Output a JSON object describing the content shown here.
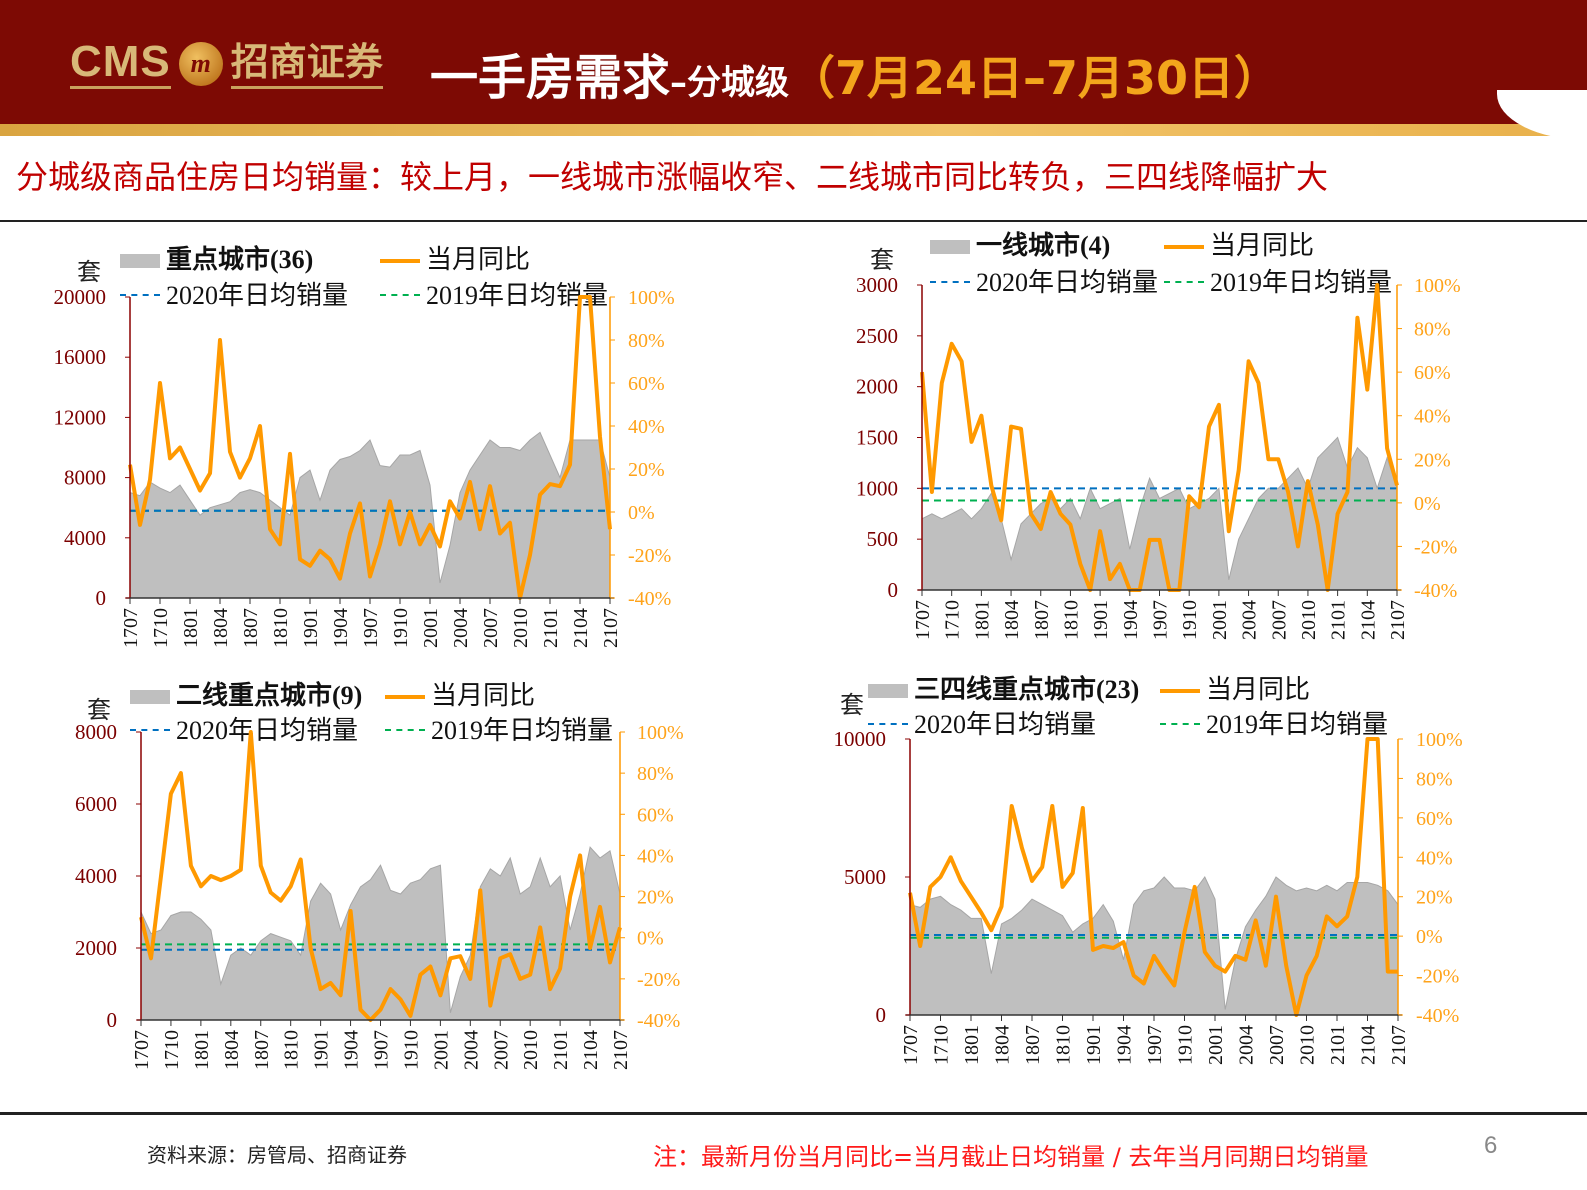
{
  "header": {
    "logo_text": "CMS",
    "logo_cn": "招商证券",
    "title_main": "一手房需求",
    "title_sub": "–分城级",
    "title_date": "（7月24日–7月30日）"
  },
  "subtitle": "分城级商品住房日均销量：较上月，一线城市涨幅收窄、二线城市同比转负，三四线降幅扩大",
  "footer": {
    "source": "资料来源：房管局、招商证券",
    "note": "注：最新月份当月同比=当月截止日均销量 / 去年当月同期日均销量",
    "page": "6"
  },
  "colors": {
    "area": "#bfbfbf",
    "yoy": "#ff9900",
    "avg2020": "#0070c0",
    "avg2019": "#00b050",
    "left_axis": "#8b0000",
    "right_axis": "#ff9900"
  },
  "chart_data": [
    {
      "type": "area+line",
      "unit": "套",
      "legend": {
        "area": "重点城市(36)",
        "yoy": "当月同比",
        "avg2020": "2020年日均销量",
        "avg2019": "2019年日均销量"
      },
      "categories": [
        "1707",
        "1708",
        "1709",
        "1710",
        "1711",
        "1712",
        "1801",
        "1802",
        "1803",
        "1804",
        "1805",
        "1806",
        "1807",
        "1808",
        "1809",
        "1810",
        "1811",
        "1812",
        "1901",
        "1902",
        "1903",
        "1904",
        "1905",
        "1906",
        "1907",
        "1908",
        "1909",
        "1910",
        "1911",
        "1912",
        "2001",
        "2002",
        "2003",
        "2004",
        "2005",
        "2006",
        "2007",
        "2008",
        "2009",
        "2010",
        "2011",
        "2012",
        "2101",
        "2102",
        "2103",
        "2104",
        "2105",
        "2106",
        "2107"
      ],
      "xticks": [
        "1707",
        "1710",
        "1801",
        "1804",
        "1807",
        "1810",
        "1901",
        "1904",
        "1907",
        "1910",
        "2001",
        "2004",
        "2007",
        "2010",
        "2101",
        "2104",
        "2107"
      ],
      "area_values": [
        7000,
        6800,
        7700,
        7300,
        7000,
        7500,
        6500,
        5500,
        6000,
        6200,
        6400,
        7000,
        7200,
        7000,
        6500,
        6000,
        5500,
        8000,
        8500,
        6500,
        8500,
        9200,
        9400,
        9800,
        10500,
        8800,
        8700,
        9500,
        9500,
        9800,
        7500,
        1000,
        3500,
        7000,
        8500,
        9500,
        10500,
        10000,
        10000,
        9800,
        10500,
        11000,
        9500,
        8000,
        10500,
        10500,
        10500,
        10500,
        8000
      ],
      "yoy_values": [
        22,
        -6,
        15,
        60,
        25,
        30,
        20,
        10,
        18,
        80,
        28,
        16,
        25,
        40,
        -8,
        -15,
        27,
        -22,
        -25,
        -18,
        -22,
        -31,
        -10,
        4,
        -30,
        -15,
        5,
        -15,
        0,
        -15,
        -6,
        -16,
        5,
        -3,
        14,
        -8,
        12,
        -10,
        -5,
        -40,
        -20,
        8,
        13,
        12,
        22,
        100,
        100,
        35,
        -8
      ],
      "avg2020": 5800,
      "avg2019": 5800,
      "yleft": {
        "min": 0,
        "max": 20000,
        "ticks": [
          "0",
          "4000",
          "8000",
          "12000",
          "16000",
          "20000"
        ]
      },
      "yright": {
        "min": -40,
        "max": 100,
        "ticks": [
          "-40%",
          "-20%",
          "0%",
          "20%",
          "40%",
          "60%",
          "80%",
          "100%"
        ]
      }
    },
    {
      "type": "area+line",
      "unit": "套",
      "legend": {
        "area": "一线城市(4)",
        "yoy": "当月同比",
        "avg2020": "2020年日均销量",
        "avg2019": "2019年日均销量"
      },
      "categories": [
        "1707",
        "1708",
        "1709",
        "1710",
        "1711",
        "1712",
        "1801",
        "1802",
        "1803",
        "1804",
        "1805",
        "1806",
        "1807",
        "1808",
        "1809",
        "1810",
        "1811",
        "1812",
        "1901",
        "1902",
        "1903",
        "1904",
        "1905",
        "1906",
        "1907",
        "1908",
        "1909",
        "1910",
        "1911",
        "1912",
        "2001",
        "2002",
        "2003",
        "2004",
        "2005",
        "2006",
        "2007",
        "2008",
        "2009",
        "2010",
        "2011",
        "2012",
        "2101",
        "2102",
        "2103",
        "2104",
        "2105",
        "2106",
        "2107"
      ],
      "xticks": [
        "1707",
        "1710",
        "1801",
        "1804",
        "1807",
        "1810",
        "1901",
        "1904",
        "1907",
        "1910",
        "2001",
        "2004",
        "2007",
        "2010",
        "2101",
        "2104",
        "2107"
      ],
      "area_values": [
        700,
        750,
        700,
        750,
        800,
        700,
        800,
        950,
        700,
        300,
        650,
        750,
        850,
        900,
        800,
        900,
        700,
        1000,
        800,
        850,
        900,
        400,
        800,
        1100,
        900,
        950,
        1000,
        800,
        850,
        900,
        1000,
        100,
        500,
        700,
        900,
        1000,
        1000,
        1100,
        1200,
        1000,
        1300,
        1400,
        1500,
        1200,
        1400,
        1300,
        1000,
        1300,
        1000
      ],
      "yoy_values": [
        60,
        5,
        55,
        73,
        65,
        28,
        40,
        8,
        -8,
        35,
        34,
        -5,
        -12,
        5,
        -5,
        -10,
        -28,
        -40,
        -13,
        -35,
        -28,
        -40,
        -40,
        -17,
        -17,
        -40,
        -40,
        3,
        -2,
        35,
        45,
        -13,
        15,
        65,
        55,
        20,
        20,
        5,
        -20,
        10,
        -10,
        -40,
        -5,
        5,
        85,
        52,
        100,
        25,
        8
      ],
      "avg2020": 1000,
      "avg2019": 880,
      "yleft": {
        "min": 0,
        "max": 3000,
        "ticks": [
          "0",
          "500",
          "1000",
          "1500",
          "2000",
          "2500",
          "3000"
        ]
      },
      "yright": {
        "min": -40,
        "max": 100,
        "ticks": [
          "-40%",
          "-20%",
          "0%",
          "20%",
          "40%",
          "60%",
          "80%",
          "100%"
        ]
      }
    },
    {
      "type": "area+line",
      "unit": "套",
      "legend": {
        "area": "二线重点城市(9)",
        "yoy": "当月同比",
        "avg2020": "2020年日均销量",
        "avg2019": "2019年日均销量"
      },
      "categories": [
        "1707",
        "1708",
        "1709",
        "1710",
        "1711",
        "1712",
        "1801",
        "1802",
        "1803",
        "1804",
        "1805",
        "1806",
        "1807",
        "1808",
        "1809",
        "1810",
        "1811",
        "1812",
        "1901",
        "1902",
        "1903",
        "1904",
        "1905",
        "1906",
        "1907",
        "1908",
        "1909",
        "1910",
        "1911",
        "1912",
        "2001",
        "2002",
        "2003",
        "2004",
        "2005",
        "2006",
        "2007",
        "2008",
        "2009",
        "2010",
        "2011",
        "2012",
        "2101",
        "2102",
        "2103",
        "2104",
        "2105",
        "2106",
        "2107"
      ],
      "xticks": [
        "1707",
        "1710",
        "1801",
        "1804",
        "1807",
        "1810",
        "1901",
        "1904",
        "1907",
        "1910",
        "2001",
        "2004",
        "2007",
        "2010",
        "2101",
        "2104",
        "2107"
      ],
      "area_values": [
        3000,
        2400,
        2500,
        2900,
        3000,
        3000,
        2800,
        2500,
        1000,
        1800,
        2000,
        1800,
        2200,
        2400,
        2300,
        2200,
        1800,
        3300,
        3800,
        3500,
        2500,
        3200,
        3700,
        3900,
        4300,
        3600,
        3500,
        3800,
        3900,
        4200,
        4300,
        200,
        1200,
        1800,
        3700,
        4200,
        4000,
        4500,
        3500,
        3700,
        4500,
        3700,
        4000,
        2500,
        3500,
        4800,
        4500,
        4700,
        3500
      ],
      "yoy_values": [
        10,
        -10,
        30,
        70,
        80,
        35,
        25,
        30,
        28,
        30,
        33,
        100,
        35,
        22,
        18,
        25,
        38,
        -5,
        -25,
        -22,
        -28,
        13,
        -35,
        -40,
        -35,
        -25,
        -30,
        -38,
        -18,
        -14,
        -28,
        -10,
        -9,
        -20,
        23,
        -33,
        -10,
        -8,
        -20,
        -18,
        5,
        -25,
        -15,
        20,
        40,
        -5,
        15,
        -12,
        5
      ],
      "avg2020": 1950,
      "avg2019": 2100,
      "yleft": {
        "min": 0,
        "max": 8000,
        "ticks": [
          "0",
          "2000",
          "4000",
          "6000",
          "8000"
        ]
      },
      "yright": {
        "min": -40,
        "max": 100,
        "ticks": [
          "-40%",
          "-20%",
          "0%",
          "20%",
          "40%",
          "60%",
          "80%",
          "100%"
        ]
      }
    },
    {
      "type": "area+line",
      "unit": "套",
      "legend": {
        "area": "三四线重点城市(23)",
        "yoy": "当月同比",
        "avg2020": "2020年日均销量",
        "avg2019": "2019年日均销量"
      },
      "categories": [
        "1707",
        "1708",
        "1709",
        "1710",
        "1711",
        "1712",
        "1801",
        "1802",
        "1803",
        "1804",
        "1805",
        "1806",
        "1807",
        "1808",
        "1809",
        "1810",
        "1811",
        "1812",
        "1901",
        "1902",
        "1903",
        "1904",
        "1905",
        "1906",
        "1907",
        "1908",
        "1909",
        "1910",
        "1911",
        "1912",
        "2001",
        "2002",
        "2003",
        "2004",
        "2005",
        "2006",
        "2007",
        "2008",
        "2009",
        "2010",
        "2011",
        "2012",
        "2101",
        "2102",
        "2103",
        "2104",
        "2105",
        "2106",
        "2107"
      ],
      "xticks": [
        "1707",
        "1710",
        "1801",
        "1804",
        "1807",
        "1810",
        "1901",
        "1904",
        "1907",
        "1910",
        "2001",
        "2004",
        "2007",
        "2010",
        "2101",
        "2104",
        "2107"
      ],
      "area_values": [
        4000,
        3900,
        4200,
        4300,
        4000,
        3800,
        3500,
        3500,
        1500,
        3300,
        3500,
        3800,
        4200,
        4000,
        3800,
        3600,
        3000,
        3300,
        3500,
        4000,
        3400,
        2000,
        4000,
        4500,
        4600,
        5000,
        4600,
        4600,
        4500,
        5000,
        4200,
        200,
        2000,
        3200,
        3800,
        4300,
        5000,
        4700,
        4500,
        4600,
        4500,
        4700,
        4500,
        4800,
        4800,
        4800,
        4700,
        4500,
        4000
      ],
      "yoy_values": [
        22,
        -5,
        25,
        30,
        40,
        28,
        20,
        12,
        3,
        15,
        66,
        45,
        28,
        35,
        66,
        25,
        32,
        65,
        -7,
        -5,
        -6,
        -3,
        -20,
        -24,
        -10,
        -18,
        -25,
        2,
        25,
        -8,
        -15,
        -18,
        -10,
        -12,
        8,
        -15,
        20,
        -15,
        -40,
        -20,
        -10,
        10,
        5,
        10,
        30,
        100,
        100,
        -18,
        -18
      ],
      "avg2020": 2900,
      "avg2019": 2800,
      "yleft": {
        "min": 0,
        "max": 10000,
        "ticks": [
          "0",
          "5000",
          "10000"
        ]
      },
      "yright": {
        "min": -40,
        "max": 100,
        "ticks": [
          "-40%",
          "-20%",
          "0%",
          "20%",
          "40%",
          "60%",
          "80%",
          "100%"
        ]
      }
    }
  ]
}
